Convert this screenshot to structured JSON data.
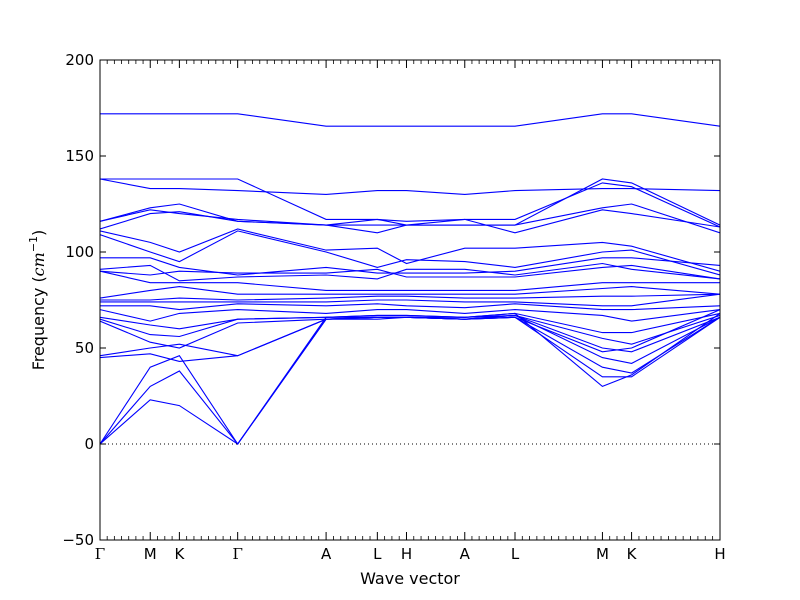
{
  "chart_data": {
    "type": "line",
    "title": "",
    "xlabel": "Wave vector",
    "ylabel": {
      "prefix": "Frequency (",
      "unit_italic": "cm",
      "sup": "−1",
      "suffix": ")"
    },
    "ylim": [
      -50,
      200
    ],
    "yticks": [
      -50,
      0,
      50,
      100,
      150,
      200
    ],
    "ytick_labels": [
      "−50",
      "0",
      "50",
      "100",
      "150",
      "200"
    ],
    "x_symmetry_points": [
      {
        "label": "Γ",
        "x": 0.0
      },
      {
        "label": "M",
        "x": 0.5
      },
      {
        "label": "K",
        "x": 0.79
      },
      {
        "label": "Γ",
        "x": 1.37
      },
      {
        "label": "A",
        "x": 2.25
      },
      {
        "label": "L",
        "x": 2.76
      },
      {
        "label": "H",
        "x": 3.05
      },
      {
        "label": "A",
        "x": 3.63
      },
      {
        "label": "L",
        "x": 4.13
      },
      {
        "label": "M",
        "x": 5.0
      },
      {
        "label": "K",
        "x": 5.29
      },
      {
        "label": "H",
        "x": 6.17
      }
    ],
    "xlim": [
      0,
      6.17
    ],
    "zero_line": true,
    "grid": false,
    "line_color": "#0000ff",
    "series": [
      {
        "points": [
          [
            0,
            172
          ],
          [
            1.37,
            172
          ],
          [
            2.25,
            165.5
          ],
          [
            3.63,
            165.5
          ],
          [
            4.13,
            165.5
          ],
          [
            5.0,
            172
          ],
          [
            5.29,
            172
          ],
          [
            6.17,
            165.5
          ]
        ]
      },
      {
        "points": [
          [
            0,
            138
          ],
          [
            1.37,
            138
          ],
          [
            2.25,
            117
          ],
          [
            2.76,
            117
          ],
          [
            3.05,
            114
          ],
          [
            3.63,
            114
          ],
          [
            4.13,
            114
          ],
          [
            5.0,
            138
          ],
          [
            5.29,
            136
          ],
          [
            6.17,
            114
          ]
        ]
      },
      {
        "points": [
          [
            0,
            138
          ],
          [
            0.5,
            133
          ],
          [
            0.79,
            133
          ],
          [
            1.37,
            132
          ],
          [
            2.25,
            130
          ],
          [
            2.76,
            132
          ],
          [
            3.05,
            132
          ],
          [
            3.63,
            130
          ],
          [
            4.13,
            132
          ],
          [
            5.0,
            133
          ],
          [
            5.29,
            133
          ],
          [
            6.17,
            132
          ]
        ]
      },
      {
        "points": [
          [
            0,
            116
          ],
          [
            0.5,
            123
          ],
          [
            0.79,
            125
          ],
          [
            1.37,
            116
          ],
          [
            2.25,
            114
          ],
          [
            2.76,
            117
          ],
          [
            3.05,
            116
          ],
          [
            3.63,
            117
          ],
          [
            4.13,
            117
          ],
          [
            5.0,
            136
          ],
          [
            5.29,
            134
          ],
          [
            6.17,
            113
          ]
        ]
      },
      {
        "points": [
          [
            0,
            116
          ],
          [
            0.5,
            122
          ],
          [
            0.79,
            120
          ],
          [
            1.37,
            117
          ],
          [
            2.25,
            114
          ],
          [
            2.76,
            114
          ],
          [
            3.05,
            114
          ],
          [
            3.63,
            114
          ],
          [
            4.13,
            114
          ],
          [
            5.0,
            123
          ],
          [
            5.29,
            125
          ],
          [
            6.17,
            110
          ]
        ]
      },
      {
        "points": [
          [
            0,
            112
          ],
          [
            0.5,
            120
          ],
          [
            0.79,
            121
          ],
          [
            1.37,
            116
          ],
          [
            2.25,
            114
          ],
          [
            2.76,
            110
          ],
          [
            3.05,
            114
          ],
          [
            3.63,
            117
          ],
          [
            4.13,
            110
          ],
          [
            5.0,
            122
          ],
          [
            5.29,
            120
          ],
          [
            6.17,
            113
          ]
        ]
      },
      {
        "points": [
          [
            0,
            111
          ],
          [
            0.5,
            105
          ],
          [
            0.79,
            100
          ],
          [
            1.37,
            112
          ],
          [
            2.25,
            101
          ],
          [
            2.76,
            102
          ],
          [
            3.05,
            94
          ],
          [
            3.63,
            102
          ],
          [
            4.13,
            102
          ],
          [
            5.0,
            105
          ],
          [
            5.29,
            103
          ],
          [
            6.17,
            90
          ]
        ]
      },
      {
        "points": [
          [
            0,
            109
          ],
          [
            0.5,
            100
          ],
          [
            0.79,
            95
          ],
          [
            1.37,
            111
          ],
          [
            2.25,
            100
          ],
          [
            2.76,
            92
          ],
          [
            3.05,
            96
          ],
          [
            3.63,
            95
          ],
          [
            4.13,
            92
          ],
          [
            5.0,
            100
          ],
          [
            5.29,
            101
          ],
          [
            6.17,
            88
          ]
        ]
      },
      {
        "points": [
          [
            0,
            97
          ],
          [
            0.5,
            97
          ],
          [
            0.79,
            92
          ],
          [
            1.37,
            88
          ],
          [
            2.25,
            92
          ],
          [
            2.76,
            89
          ],
          [
            3.05,
            89
          ],
          [
            3.63,
            89
          ],
          [
            4.13,
            90
          ],
          [
            5.0,
            97
          ],
          [
            5.29,
            97
          ],
          [
            6.17,
            93
          ]
        ]
      },
      {
        "points": [
          [
            0,
            91
          ],
          [
            0.5,
            93
          ],
          [
            0.79,
            85
          ],
          [
            1.37,
            87
          ],
          [
            2.25,
            88
          ],
          [
            2.76,
            86
          ],
          [
            3.05,
            91
          ],
          [
            3.63,
            91
          ],
          [
            4.13,
            88
          ],
          [
            5.0,
            94
          ],
          [
            5.29,
            91
          ],
          [
            6.17,
            86
          ]
        ]
      },
      {
        "points": [
          [
            0,
            90
          ],
          [
            0.5,
            88
          ],
          [
            0.79,
            90
          ],
          [
            1.37,
            89
          ],
          [
            2.25,
            89
          ],
          [
            2.76,
            91
          ],
          [
            3.05,
            87
          ],
          [
            3.63,
            87
          ],
          [
            4.13,
            87
          ],
          [
            5.0,
            92
          ],
          [
            5.29,
            93
          ],
          [
            6.17,
            86
          ]
        ]
      },
      {
        "points": [
          [
            0,
            90
          ],
          [
            0.5,
            84
          ],
          [
            0.79,
            84
          ],
          [
            1.37,
            84
          ],
          [
            2.25,
            80
          ],
          [
            2.76,
            80
          ],
          [
            3.05,
            80
          ],
          [
            3.63,
            80
          ],
          [
            4.13,
            80
          ],
          [
            5.0,
            84
          ],
          [
            5.29,
            84
          ],
          [
            6.17,
            84
          ]
        ]
      },
      {
        "points": [
          [
            0,
            76
          ],
          [
            0.5,
            80
          ],
          [
            0.79,
            82
          ],
          [
            1.37,
            78
          ],
          [
            2.25,
            78
          ],
          [
            2.76,
            78
          ],
          [
            3.05,
            78
          ],
          [
            3.63,
            78
          ],
          [
            4.13,
            78
          ],
          [
            5.0,
            81
          ],
          [
            5.29,
            82
          ],
          [
            6.17,
            78
          ]
        ]
      },
      {
        "points": [
          [
            0,
            75
          ],
          [
            0.5,
            75
          ],
          [
            0.79,
            76
          ],
          [
            1.37,
            75
          ],
          [
            2.25,
            76
          ],
          [
            2.76,
            77
          ],
          [
            3.05,
            77
          ],
          [
            3.63,
            76
          ],
          [
            4.13,
            76
          ],
          [
            5.0,
            77
          ],
          [
            5.29,
            77
          ],
          [
            6.17,
            78
          ]
        ]
      },
      {
        "points": [
          [
            0,
            74
          ],
          [
            0.5,
            74
          ],
          [
            0.79,
            74
          ],
          [
            1.37,
            74
          ],
          [
            2.25,
            74
          ],
          [
            2.76,
            75
          ],
          [
            3.05,
            75
          ],
          [
            3.63,
            74
          ],
          [
            4.13,
            74
          ],
          [
            5.0,
            72
          ],
          [
            5.29,
            72
          ],
          [
            6.17,
            78
          ]
        ]
      },
      {
        "points": [
          [
            0,
            72
          ],
          [
            0.5,
            72
          ],
          [
            0.79,
            70
          ],
          [
            1.37,
            73
          ],
          [
            2.25,
            72
          ],
          [
            2.76,
            73
          ],
          [
            3.05,
            72
          ],
          [
            3.63,
            71
          ],
          [
            4.13,
            73
          ],
          [
            5.0,
            70
          ],
          [
            5.29,
            70
          ],
          [
            6.17,
            72
          ]
        ]
      },
      {
        "points": [
          [
            0,
            70
          ],
          [
            0.5,
            64
          ],
          [
            0.79,
            68
          ],
          [
            1.37,
            70
          ],
          [
            2.25,
            68
          ],
          [
            2.76,
            70
          ],
          [
            3.05,
            70
          ],
          [
            3.63,
            68
          ],
          [
            4.13,
            70
          ],
          [
            5.0,
            67
          ],
          [
            5.29,
            64
          ],
          [
            6.17,
            70
          ]
        ]
      },
      {
        "points": [
          [
            0,
            66
          ],
          [
            0.5,
            62
          ],
          [
            0.79,
            60
          ],
          [
            1.37,
            65
          ],
          [
            2.25,
            66
          ],
          [
            2.76,
            67
          ],
          [
            3.05,
            67
          ],
          [
            3.63,
            66
          ],
          [
            4.13,
            68
          ],
          [
            5.0,
            58
          ],
          [
            5.29,
            58
          ],
          [
            6.17,
            68
          ]
        ]
      },
      {
        "points": [
          [
            0,
            65
          ],
          [
            0.5,
            57
          ],
          [
            0.79,
            56
          ],
          [
            1.37,
            65
          ],
          [
            2.25,
            66
          ],
          [
            2.76,
            66
          ],
          [
            3.05,
            66
          ],
          [
            3.63,
            66
          ],
          [
            4.13,
            67
          ],
          [
            5.0,
            55
          ],
          [
            5.29,
            52
          ],
          [
            6.17,
            67
          ]
        ]
      },
      {
        "points": [
          [
            0,
            64
          ],
          [
            0.5,
            53
          ],
          [
            0.79,
            50
          ],
          [
            1.37,
            63
          ],
          [
            2.25,
            65
          ],
          [
            2.76,
            66
          ],
          [
            3.05,
            66
          ],
          [
            3.63,
            65
          ],
          [
            4.13,
            67
          ],
          [
            5.0,
            50
          ],
          [
            5.29,
            48
          ],
          [
            6.17,
            66
          ]
        ]
      },
      {
        "points": [
          [
            0,
            46
          ],
          [
            0.5,
            50
          ],
          [
            0.79,
            52
          ],
          [
            1.37,
            46
          ],
          [
            2.25,
            65
          ],
          [
            2.76,
            66
          ],
          [
            3.05,
            66
          ],
          [
            3.63,
            65
          ],
          [
            4.13,
            67
          ],
          [
            5.0,
            45
          ],
          [
            5.29,
            42
          ],
          [
            6.17,
            66
          ]
        ]
      },
      {
        "points": [
          [
            0,
            45
          ],
          [
            0.5,
            47
          ],
          [
            0.79,
            43
          ],
          [
            1.37,
            46
          ],
          [
            2.25,
            65
          ],
          [
            2.76,
            65
          ],
          [
            3.05,
            66
          ],
          [
            3.63,
            65
          ],
          [
            4.13,
            66
          ],
          [
            5.0,
            40
          ],
          [
            5.29,
            37
          ],
          [
            6.17,
            66
          ]
        ]
      },
      {
        "points": [
          [
            0,
            0
          ],
          [
            0.5,
            40
          ],
          [
            0.79,
            46
          ],
          [
            1.37,
            0
          ],
          [
            2.25,
            65
          ],
          [
            2.76,
            66
          ],
          [
            3.05,
            66
          ],
          [
            3.63,
            65
          ],
          [
            4.13,
            66
          ],
          [
            5.0,
            35
          ],
          [
            5.29,
            35
          ],
          [
            6.17,
            66
          ]
        ]
      },
      {
        "points": [
          [
            0,
            0
          ],
          [
            0.5,
            30
          ],
          [
            0.79,
            38
          ],
          [
            1.37,
            0
          ],
          [
            2.25,
            66
          ],
          [
            2.76,
            67
          ],
          [
            3.05,
            67
          ],
          [
            3.63,
            66
          ],
          [
            4.13,
            68
          ],
          [
            5.0,
            30
          ],
          [
            5.29,
            36
          ],
          [
            6.17,
            68
          ]
        ]
      },
      {
        "points": [
          [
            0,
            0
          ],
          [
            0.5,
            23
          ],
          [
            0.79,
            20
          ],
          [
            1.37,
            0
          ],
          [
            2.25,
            65
          ],
          [
            2.76,
            66
          ],
          [
            3.05,
            66
          ],
          [
            3.63,
            65
          ],
          [
            4.13,
            66
          ],
          [
            5.0,
            48
          ],
          [
            5.29,
            50
          ],
          [
            6.17,
            70
          ]
        ]
      }
    ]
  }
}
